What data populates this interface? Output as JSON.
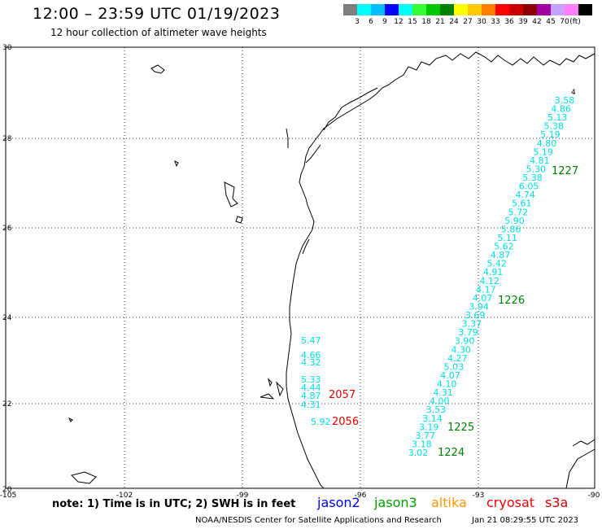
{
  "header": {
    "title": "12:00 – 23:59 UTC 01/19/2023",
    "subtitle": "12 hour collection of altimeter wave heights"
  },
  "legend": {
    "unit": "(ft)",
    "labels": [
      "3",
      "6",
      "9",
      "12",
      "15",
      "18",
      "21",
      "24",
      "27",
      "30",
      "33",
      "36",
      "39",
      "42",
      "45",
      "70"
    ],
    "colors": [
      "#7f7f7f",
      "#00ffff",
      "#00bfff",
      "#0000ff",
      "#00ffff",
      "#33ff33",
      "#00c800",
      "#008000",
      "#ffff00",
      "#ffc800",
      "#ff8000",
      "#ff0000",
      "#c80000",
      "#8b0000",
      "#a000a0",
      "#c8a0ff",
      "#ff80ff",
      "#000000"
    ]
  },
  "axes": {
    "lon_ticks": [
      "-105",
      "-102",
      "-99",
      "-96",
      "-93",
      "-90"
    ],
    "lat_ticks": [
      "30",
      "28",
      "26",
      "24",
      "22",
      "20"
    ]
  },
  "passes": {
    "jason3_cyan": [
      "3.58",
      "4.86",
      "5.13",
      "5.38",
      "5.19",
      "4.80",
      "5.19",
      "4.81",
      "5.30",
      "5.38",
      "6.05",
      "4.74",
      "5.61",
      "5.72",
      "5.90",
      "5.86",
      "5.11",
      "5.62",
      "4.87",
      "5.42",
      "4.91",
      "4.12",
      "4.17",
      "4.07",
      "3.94",
      "3.69",
      "3.37",
      "3.79",
      "3.90",
      "4.30",
      "4.27",
      "5.03",
      "4.07",
      "4.10",
      "4.31",
      "4.00",
      "3.53",
      "3.14",
      "3.19",
      "3.77",
      "3.18",
      "3.02"
    ],
    "coastal_cyan": [
      "5.47",
      "4.66",
      "4.32",
      "5.33",
      "4.44",
      "4.87",
      "4.31",
      "5.92"
    ],
    "track_labels_green": [
      "1227",
      "1226",
      "1225",
      "1224"
    ],
    "track_labels_red": [
      "2057",
      "2056"
    ],
    "top_label": "4"
  },
  "notes": {
    "note_text": "note: 1) Time is in UTC; 2) SWH is in feet",
    "missions": [
      {
        "name": "jason2",
        "color": "#0000ff"
      },
      {
        "name": "jason3",
        "color": "#00a000"
      },
      {
        "name": "altika",
        "color": "#ff9900"
      },
      {
        "name": "cryosat",
        "color": "#ee0000"
      },
      {
        "name": "s3a",
        "color": "#cc0000"
      }
    ],
    "credit": "NOAA/NESDIS Center for Satellite Applications and Research",
    "timestamp": "Jan 21 08:29:55 UTC 2023"
  }
}
